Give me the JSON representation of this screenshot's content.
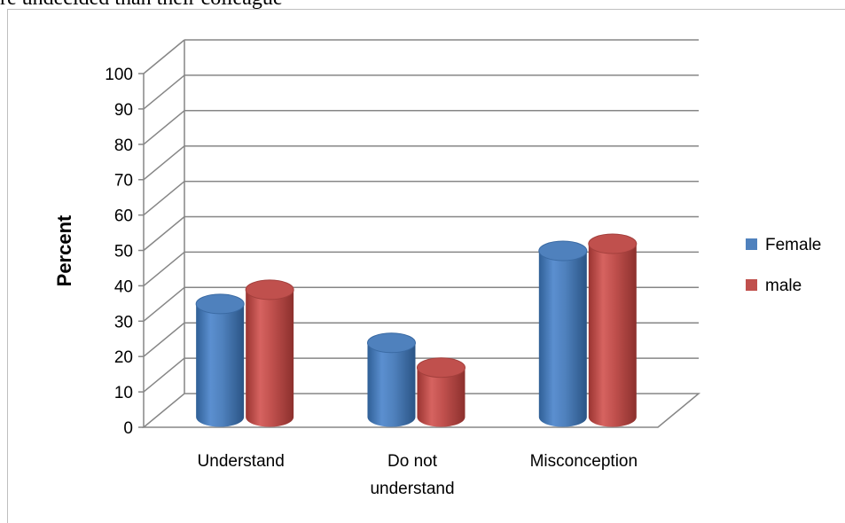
{
  "header_text": "re undecided than their colleague",
  "chart_data": {
    "type": "bar",
    "style": "3d-cylinder",
    "title": "",
    "xlabel": "",
    "ylabel": "Percent",
    "ylim": [
      0,
      100
    ],
    "yticks": [
      "0",
      "10",
      "20",
      "30",
      "40",
      "50",
      "60",
      "70",
      "80",
      "90",
      "100"
    ],
    "categories": [
      "Understand",
      "Do not understand",
      "Misconception"
    ],
    "category_lines": [
      [
        "Understand"
      ],
      [
        "Do not",
        "understand"
      ],
      [
        "Misconception"
      ]
    ],
    "series": [
      {
        "name": "Female",
        "values": [
          32,
          21,
          47
        ],
        "color": "#4f81bd"
      },
      {
        "name": "male",
        "values": [
          36,
          14,
          49
        ],
        "color": "#c0504d"
      }
    ],
    "grid": true,
    "legend_position": "right"
  }
}
